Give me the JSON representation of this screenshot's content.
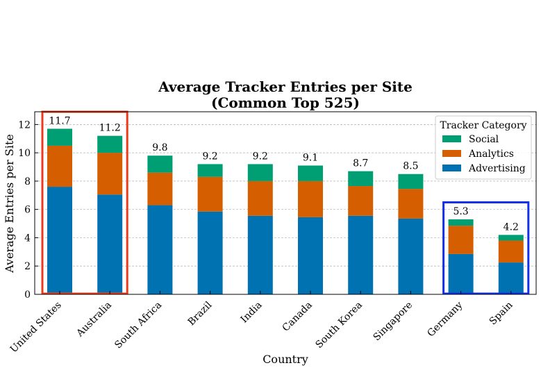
{
  "chart_data": {
    "type": "bar",
    "stacked": true,
    "title_line1": "Average Tracker Entries per Site",
    "title_line2": "(Common Top 525)",
    "xlabel": "Country",
    "ylabel": "Average Entries per Site",
    "ylim": [
      0,
      12.9
    ],
    "yticks": [
      0,
      2,
      4,
      6,
      8,
      10,
      12
    ],
    "grid": "horizontal-dashed",
    "categories": [
      "United States",
      "Australia",
      "South Africa",
      "Brazil",
      "India",
      "Canada",
      "South Korea",
      "Singapore",
      "Germany",
      "Spain"
    ],
    "series": [
      {
        "name": "Advertising",
        "color": "#0072b2",
        "values": [
          7.6,
          7.05,
          6.3,
          5.85,
          5.55,
          5.45,
          5.55,
          5.35,
          2.85,
          2.25
        ]
      },
      {
        "name": "Analytics",
        "color": "#d55e00",
        "values": [
          2.9,
          2.95,
          2.3,
          2.45,
          2.45,
          2.55,
          2.1,
          2.1,
          2.0,
          1.55
        ]
      },
      {
        "name": "Social",
        "color": "#009e73",
        "values": [
          1.2,
          1.2,
          1.2,
          0.9,
          1.2,
          1.1,
          1.05,
          1.05,
          0.45,
          0.4
        ]
      }
    ],
    "totals": [
      "11.7",
      "11.2",
      "9.8",
      "9.2",
      "9.2",
      "9.1",
      "8.7",
      "8.5",
      "5.3",
      "4.2"
    ],
    "legend": {
      "title": "Tracker Category",
      "placement": "top-right",
      "order": [
        "Social",
        "Analytics",
        "Advertising"
      ]
    },
    "highlights": [
      {
        "categories": [
          "United States",
          "Australia"
        ],
        "color": "#ee3a1a",
        "y_top": 12.9
      },
      {
        "categories": [
          "Germany",
          "Spain"
        ],
        "color": "#1030ee",
        "y_top": 6.5
      }
    ]
  }
}
